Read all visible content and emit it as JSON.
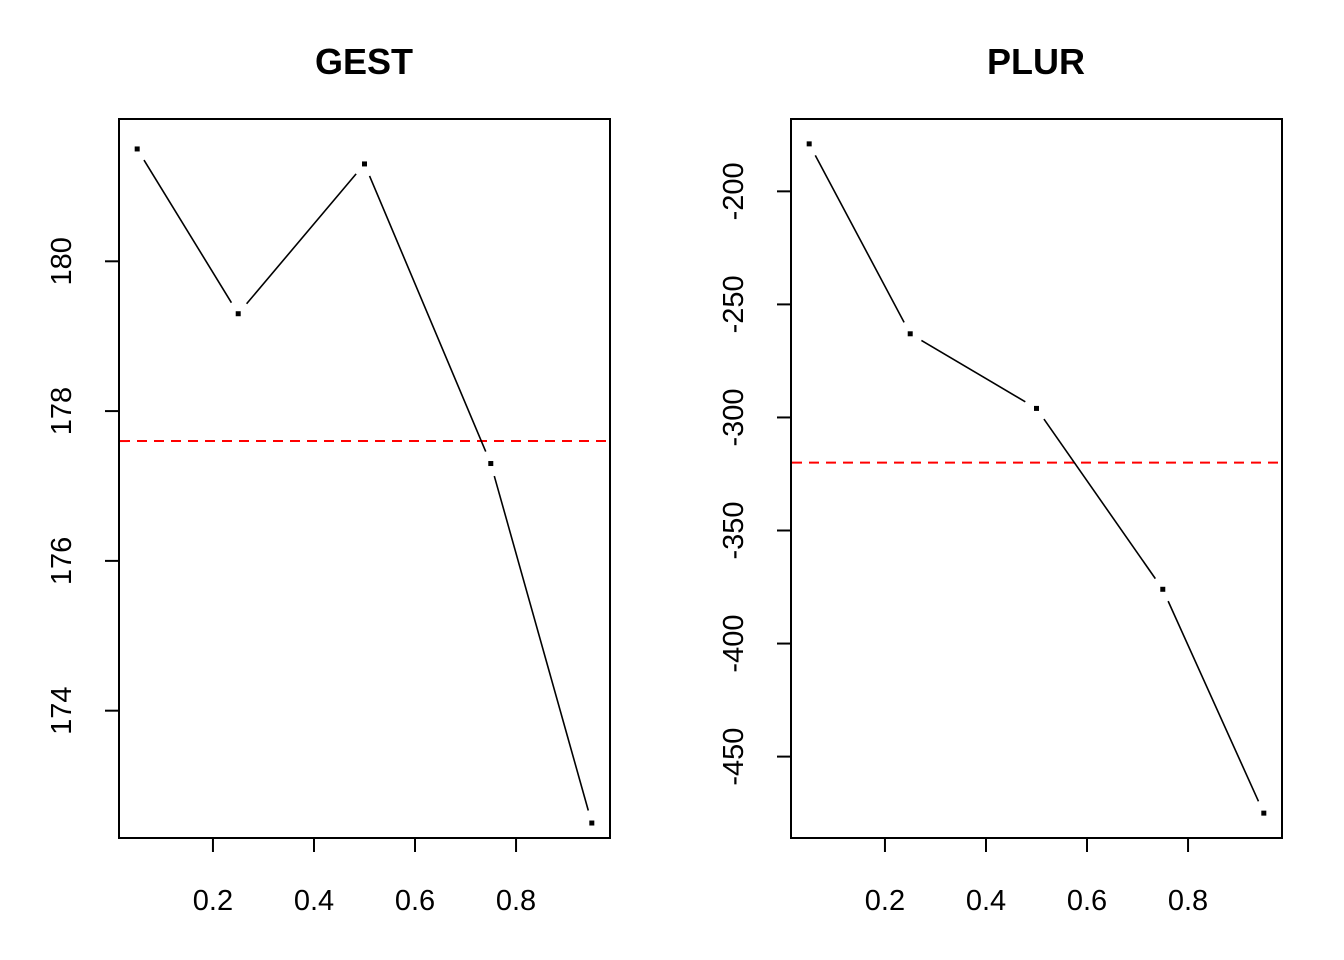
{
  "chart_data": [
    {
      "type": "line",
      "title": "GEST",
      "xlabel": "",
      "ylabel": "",
      "x": [
        0.05,
        0.25,
        0.5,
        0.75,
        0.95
      ],
      "y": [
        181.5,
        179.3,
        181.3,
        177.3,
        172.5
      ],
      "reference_line": 177.6,
      "reference_color": "#ff0000",
      "xlim": [
        0.014,
        0.986
      ],
      "ylim": [
        172.3,
        181.9
      ],
      "xticks": [
        0.2,
        0.4,
        0.6,
        0.8
      ],
      "xtick_labels": [
        "0.2",
        "0.4",
        "0.6",
        "0.8"
      ],
      "yticks": [
        174,
        176,
        178,
        180
      ],
      "ytick_labels": [
        "174",
        "176",
        "178",
        "180"
      ],
      "grid": false
    },
    {
      "type": "line",
      "title": "PLUR",
      "xlabel": "",
      "ylabel": "",
      "x": [
        0.05,
        0.25,
        0.5,
        0.75,
        0.95
      ],
      "y": [
        -179,
        -263,
        -296,
        -376,
        -475
      ],
      "reference_line": -320,
      "reference_color": "#ff0000",
      "xlim": [
        0.014,
        0.986
      ],
      "ylim": [
        -486,
        -168
      ],
      "xticks": [
        0.2,
        0.4,
        0.6,
        0.8
      ],
      "xtick_labels": [
        "0.2",
        "0.4",
        "0.6",
        "0.8"
      ],
      "yticks": [
        -450,
        -400,
        -350,
        -300,
        -250,
        -200
      ],
      "ytick_labels": [
        "-450",
        "-400",
        "-350",
        "-300",
        "-250",
        "-200"
      ],
      "grid": false
    }
  ]
}
